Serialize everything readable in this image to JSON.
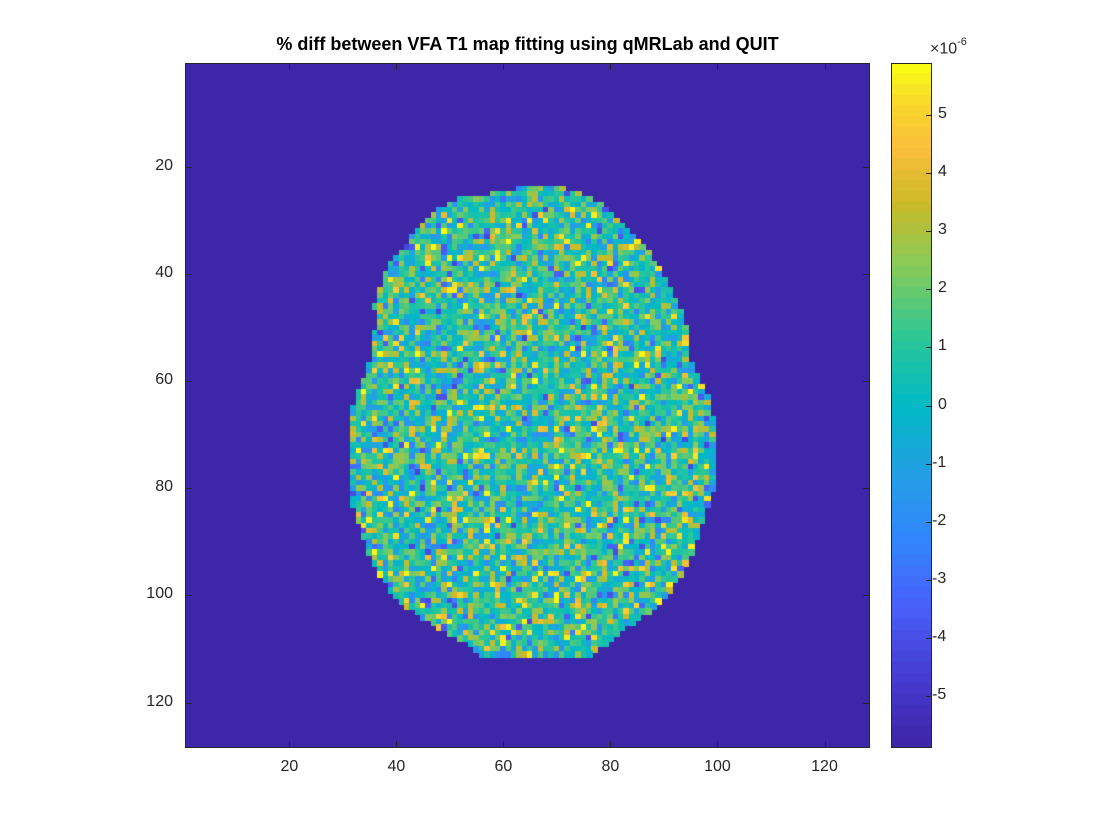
{
  "chart_data": {
    "type": "heatmap",
    "title": "% diff between VFA T1 map fitting using qMRLab and QUIT",
    "xlabel": "",
    "ylabel": "",
    "xlim": [
      0.5,
      128.5
    ],
    "ylim": [
      0.5,
      128.5
    ],
    "y_direction": "reverse",
    "x_ticks": [
      20,
      40,
      60,
      80,
      100,
      120
    ],
    "y_ticks": [
      20,
      40,
      60,
      80,
      100,
      120
    ],
    "grid": false,
    "colormap": "parula",
    "colorbar": {
      "position": "right",
      "clim": [
        -5.9e-06,
        5.9e-06
      ],
      "exponent_label": "×10",
      "exponent": "-6",
      "ticks": [
        5,
        4,
        3,
        2,
        1,
        0,
        -1,
        -2,
        -3,
        -4,
        -5
      ],
      "tick_labels": [
        "5",
        "4",
        "3",
        "2",
        "1",
        "0",
        "-1",
        "-2",
        "-3",
        "-4",
        "-5"
      ]
    },
    "background_value": -5.9e-06,
    "matrix_size": [
      128,
      128
    ],
    "region": {
      "description": "brain-shaped mask with noise-like values spanning roughly -5.9e-6 to 5.9e-6",
      "row_extents": [
        [
          24,
          63,
          71
        ],
        [
          26,
          52,
          76
        ],
        [
          28,
          48,
          79
        ],
        [
          30,
          46,
          81
        ],
        [
          33,
          43,
          84
        ],
        [
          35,
          42,
          86
        ],
        [
          38,
          39,
          88
        ],
        [
          41,
          38,
          90
        ],
        [
          44,
          37,
          91
        ],
        [
          46,
          36,
          92
        ],
        [
          48,
          37,
          93
        ],
        [
          52,
          36,
          94
        ],
        [
          55,
          36,
          94
        ],
        [
          58,
          35,
          95
        ],
        [
          60,
          34,
          96
        ],
        [
          63,
          33,
          98
        ],
        [
          66,
          32,
          98
        ],
        [
          68,
          32,
          99
        ],
        [
          72,
          32,
          99
        ],
        [
          78,
          32,
          99
        ],
        [
          82,
          32,
          98
        ],
        [
          85,
          33,
          97
        ],
        [
          88,
          34,
          96
        ],
        [
          91,
          35,
          95
        ],
        [
          94,
          36,
          94
        ],
        [
          97,
          38,
          92
        ],
        [
          100,
          40,
          90
        ],
        [
          102,
          42,
          88
        ],
        [
          104,
          45,
          85
        ],
        [
          106,
          48,
          82
        ],
        [
          108,
          52,
          80
        ],
        [
          110,
          55,
          77
        ],
        [
          111,
          56,
          76
        ]
      ],
      "seed": 12345
    }
  }
}
